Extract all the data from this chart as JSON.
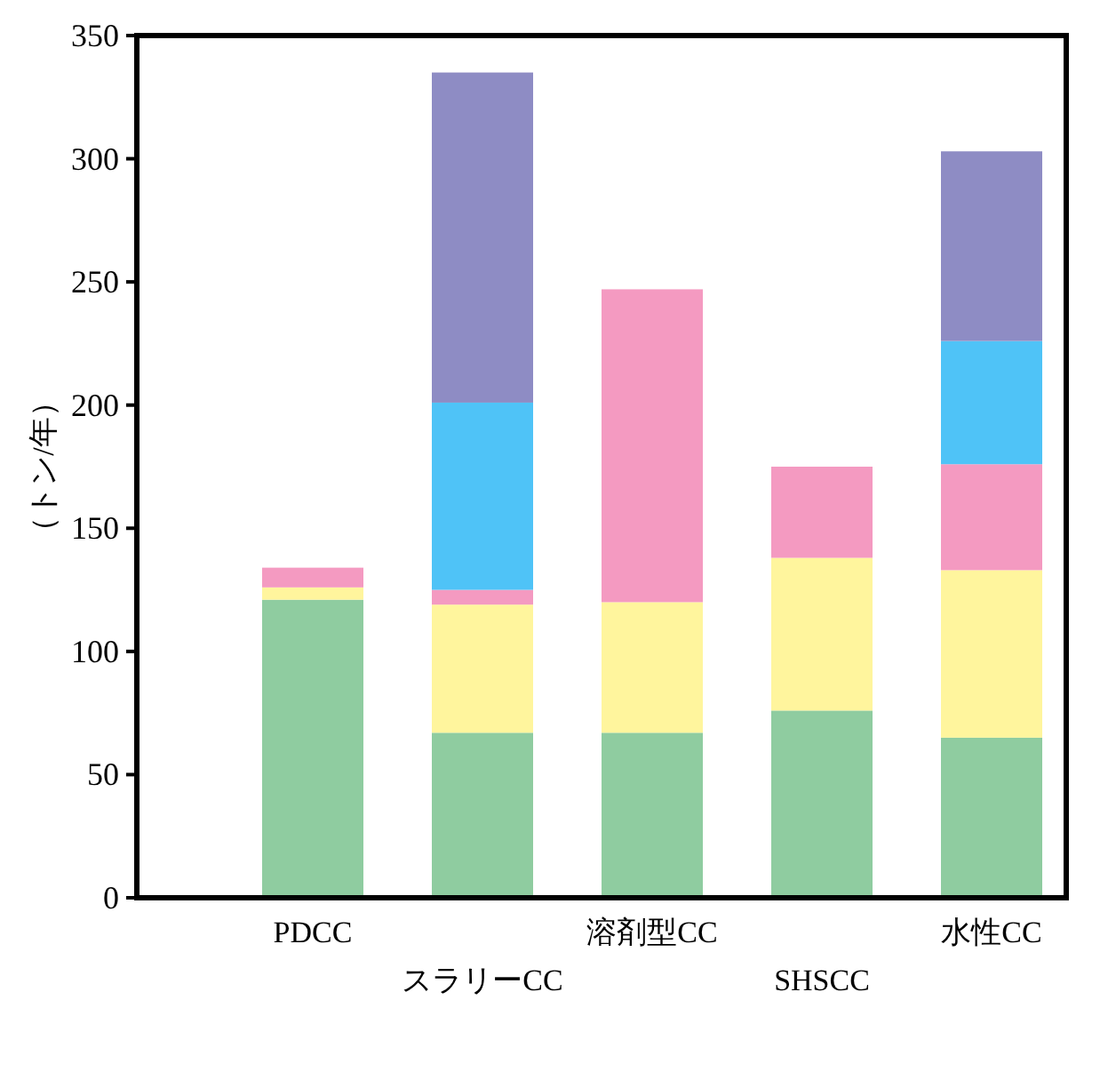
{
  "chart_data": {
    "type": "bar",
    "stacked": true,
    "ylabel": "（トン/年）",
    "categories": [
      "PDCC",
      "スラリーCC",
      "溶剤型CC",
      "SHSCC",
      "水性CC"
    ],
    "series": [
      {
        "color": "#8fcca0",
        "values": [
          121,
          67,
          67,
          76,
          65
        ]
      },
      {
        "color": "#fff59d",
        "values": [
          5,
          52,
          53,
          62,
          68
        ]
      },
      {
        "color": "#f49ac1",
        "values": [
          8,
          6,
          127,
          37,
          43
        ]
      },
      {
        "color": "#4fc3f7",
        "values": [
          null,
          76,
          null,
          null,
          50
        ]
      },
      {
        "color": "#8e8cc4",
        "values": [
          null,
          134,
          null,
          null,
          77
        ]
      }
    ],
    "ylim": [
      0,
      350
    ],
    "yticks": [
      0,
      50,
      100,
      150,
      200,
      250,
      300,
      350
    ],
    "grid": false
  }
}
